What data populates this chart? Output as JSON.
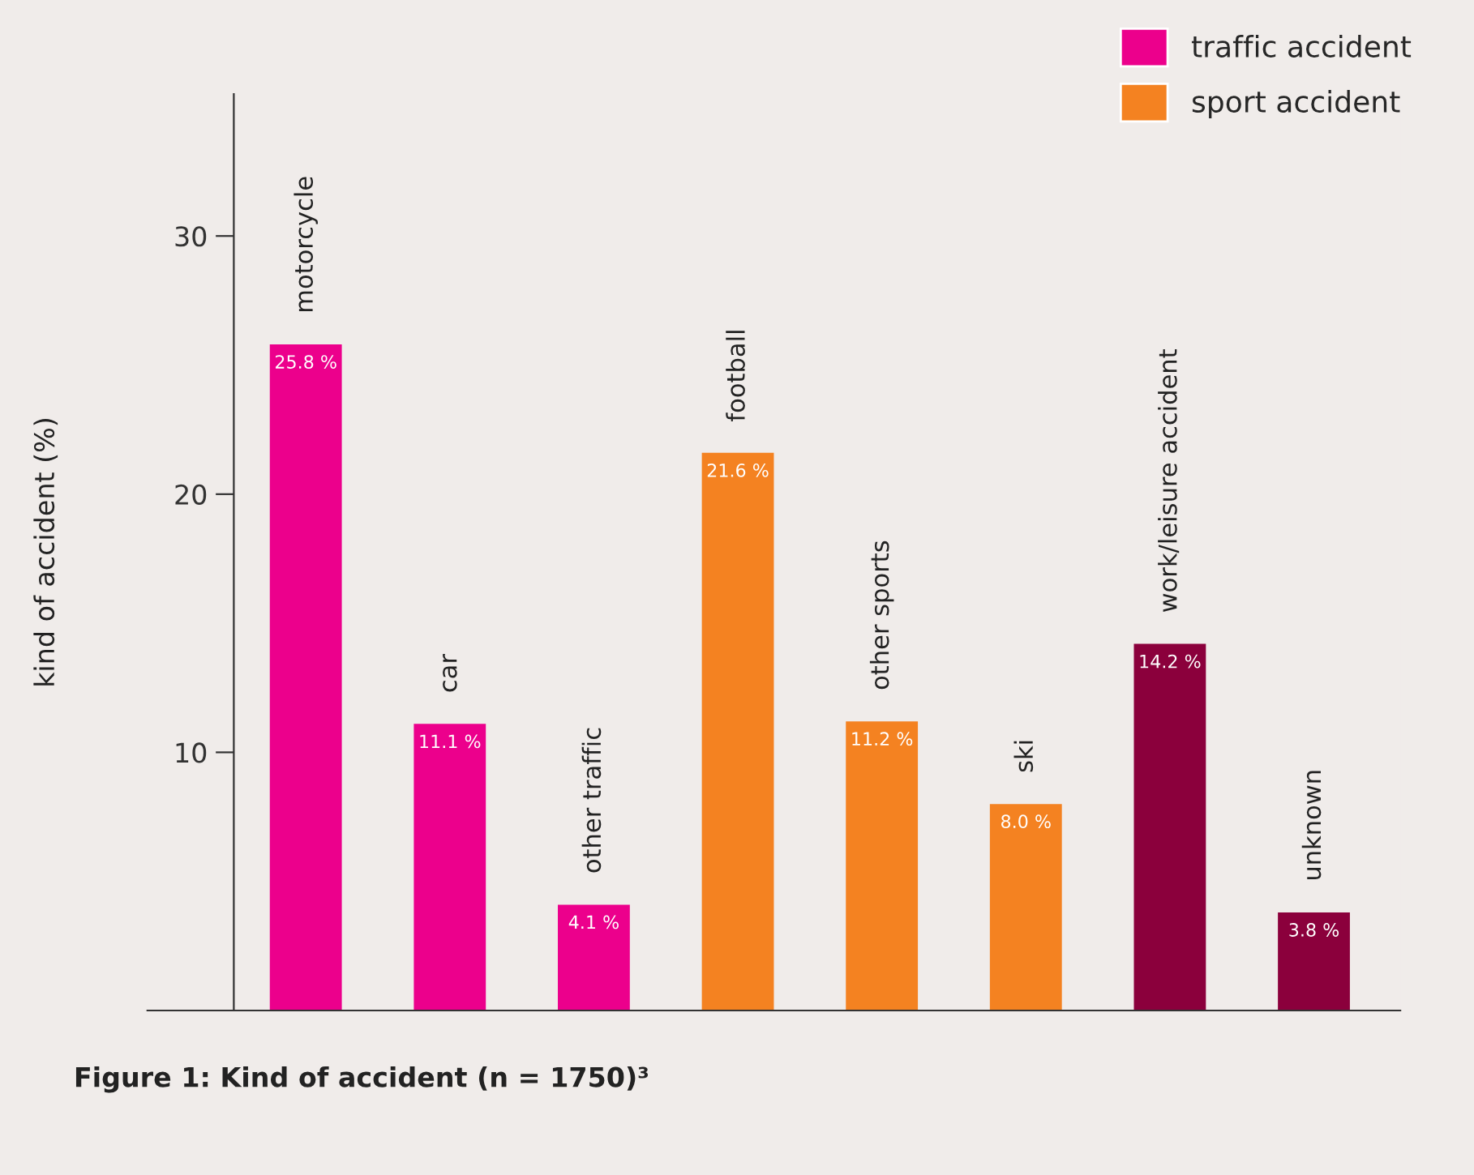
{
  "chart_data": {
    "type": "bar",
    "title": "Figure 1: Kind of accident (n = 1750)³",
    "ylabel": "kind of accident (%)",
    "categories": [
      "motorcycle",
      "car",
      "other traffic",
      "football",
      "other sports",
      "ski",
      "work/leisure accident",
      "unknown"
    ],
    "series": [
      {
        "name": "traffic accident",
        "color": "#ec008c",
        "values": [
          25.8,
          11.1,
          4.1,
          null,
          null,
          null,
          null,
          null
        ],
        "value_labels": [
          "25.8 %",
          "11.1 %",
          "4.1 %",
          null,
          null,
          null,
          null,
          null
        ]
      },
      {
        "name": "sport accident",
        "color": "#f48221",
        "values": [
          null,
          null,
          null,
          21.6,
          11.2,
          8.0,
          null,
          null
        ],
        "value_labels": [
          null,
          null,
          null,
          "21.6 %",
          "11.2 %",
          "8.0 %",
          null,
          null
        ]
      },
      {
        "color": "#8b003c",
        "values": [
          null,
          null,
          null,
          null,
          null,
          null,
          14.2,
          3.8
        ],
        "value_labels": [
          null,
          null,
          null,
          null,
          null,
          null,
          "14.2 %",
          "3.8 %"
        ]
      }
    ],
    "ylim": [
      0,
      35.5
    ],
    "yticks": [
      10,
      20,
      30
    ],
    "tick_labels": "y",
    "grid": false,
    "legend": "top right"
  }
}
